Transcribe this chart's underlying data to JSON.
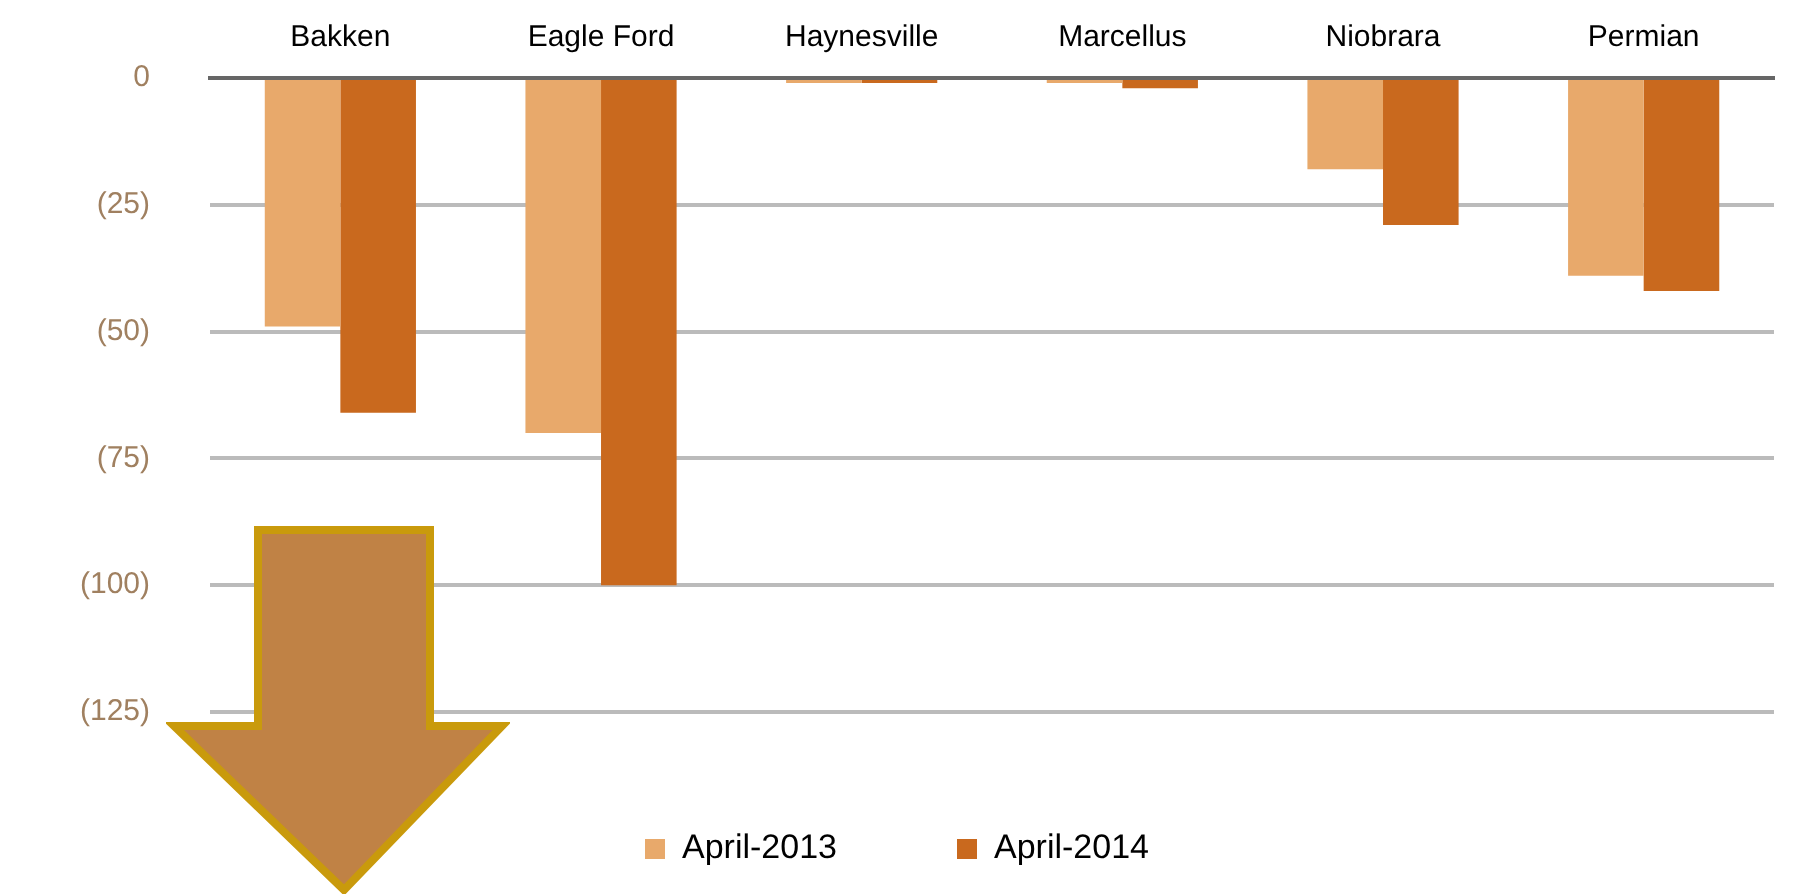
{
  "chart_data": {
    "type": "bar",
    "categories": [
      "Bakken",
      "Eagle Ford",
      "Haynesville",
      "Marcellus",
      "Niobrara",
      "Permian"
    ],
    "series": [
      {
        "name": "April-2013",
        "color": "#e8a96b",
        "values": [
          -49,
          -70,
          -1,
          -1,
          -18,
          -39
        ]
      },
      {
        "name": "April-2014",
        "color": "#c9691e",
        "values": [
          -66,
          -100,
          -1,
          -2,
          -29,
          -42
        ]
      }
    ],
    "ylim": [
      -125,
      0
    ],
    "yticks": [
      {
        "value": 0,
        "label": "0"
      },
      {
        "value": -25,
        "label": "(25)"
      },
      {
        "value": -50,
        "label": "(50)"
      },
      {
        "value": -75,
        "label": "(75)"
      },
      {
        "value": -100,
        "label": "(100)"
      },
      {
        "value": -125,
        "label": "(125)"
      }
    ],
    "grid": "y",
    "legend": "bottom"
  }
}
